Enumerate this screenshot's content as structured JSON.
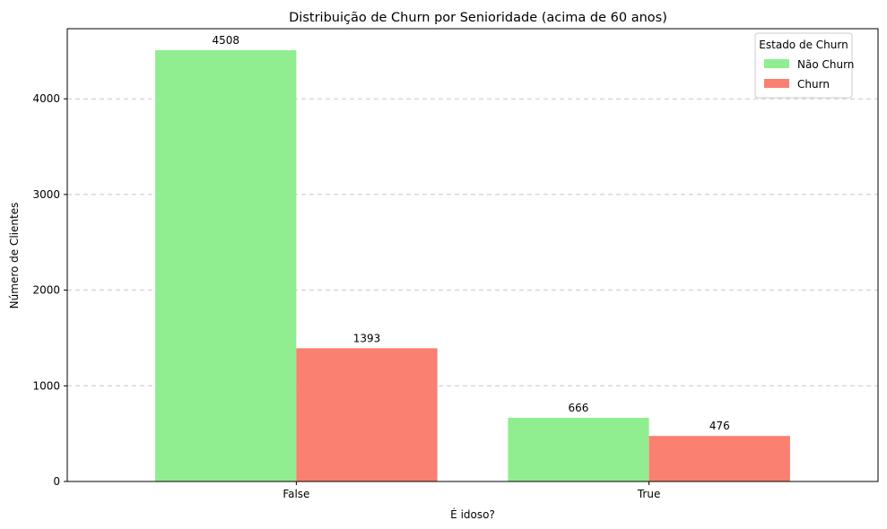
{
  "chart_data": {
    "type": "bar",
    "title": "Distribuição de Churn por Senioridade (acima de 60 anos)",
    "xlabel": "É idoso?",
    "ylabel": "Número de Clientes",
    "categories": [
      "False",
      "True"
    ],
    "series": [
      {
        "name": "Não Churn",
        "values": [
          4508,
          666
        ],
        "color": "#90ee90"
      },
      {
        "name": "Churn",
        "values": [
          1393,
          476
        ],
        "color": "#fa8072"
      }
    ],
    "ylim": [
      0,
      4733
    ],
    "yticks": [
      0,
      1000,
      2000,
      3000,
      4000
    ],
    "grid": "y-dashed",
    "legend": {
      "title": "Estado de Churn",
      "placement": "top-right"
    }
  }
}
